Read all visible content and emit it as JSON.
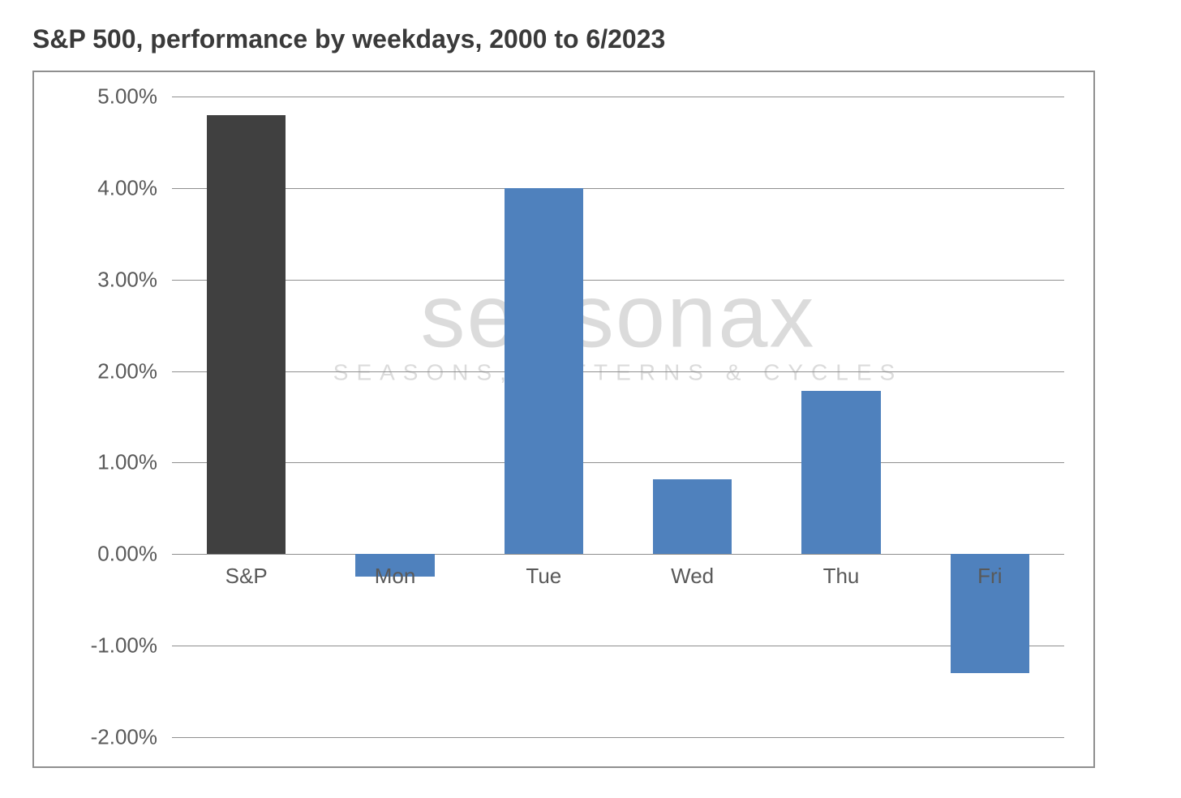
{
  "title": "S&P 500, performance by weekdays, 2000 to 6/2023",
  "chart": {
    "type": "bar",
    "categories": [
      "S&P",
      "Mon",
      "Tue",
      "Wed",
      "Thu",
      "Fri"
    ],
    "values": [
      4.8,
      -0.25,
      4.0,
      0.82,
      1.78,
      -1.3
    ],
    "bar_colors": [
      "#404040",
      "#4f81bd",
      "#4f81bd",
      "#4f81bd",
      "#4f81bd",
      "#4f81bd"
    ],
    "ylim": [
      -2.0,
      5.0
    ],
    "ytick_step": 1.0,
    "ytick_decimals": 2,
    "y_suffix": "%",
    "bar_width_ratio": 0.53,
    "background_color": "#ffffff",
    "grid_color": "#8f8f8f",
    "border_color": "#8f8f8f",
    "label_color": "#595959",
    "title_color": "#3a3a3a",
    "title_fontsize": 32,
    "label_fontsize": 26
  },
  "watermark": {
    "main": "seasonax",
    "sub": "SEASONS, PATTERNS & CYCLES",
    "main_color": "#b0b0b0",
    "sub_color": "#b0b0b0",
    "main_fontsize": 110,
    "sub_fontsize": 28
  }
}
